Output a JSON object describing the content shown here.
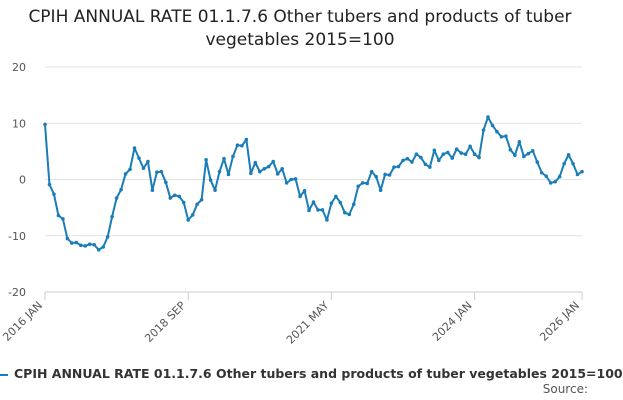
{
  "chart_data": {
    "type": "line",
    "title": "CPIH ANNUAL RATE 01.1.7.6 Other tubers and products of tuber vegetables 2015=100",
    "xlabel": "",
    "ylabel": "",
    "ylim": [
      -20,
      20
    ],
    "yticks": [
      20,
      10,
      0,
      -10,
      -20
    ],
    "x_start": "2016 JAN",
    "x_ticks": [
      {
        "label": "2016 JAN",
        "index": 0
      },
      {
        "label": "2018 SEP",
        "index": 32
      },
      {
        "label": "2021 MAY",
        "index": 64
      },
      {
        "label": "2024 JAN",
        "index": 96
      },
      {
        "label": "2026 JAN",
        "index": 120
      }
    ],
    "series": [
      {
        "name": "CPIH ANNUAL RATE 01.1.7.6 Other tubers and products of tuber vegetables 2015=100",
        "color": "#1b7db8",
        "values": [
          9.8,
          -0.9,
          -2.6,
          -6.4,
          -7.0,
          -10.5,
          -11.3,
          -11.2,
          -11.7,
          -11.8,
          -11.5,
          -11.6,
          -12.5,
          -12.0,
          -10.2,
          -6.6,
          -3.3,
          -1.8,
          1.0,
          1.8,
          5.6,
          3.8,
          2.0,
          3.2,
          -1.9,
          1.3,
          1.4,
          -0.5,
          -3.3,
          -2.8,
          -3.0,
          -4.1,
          -7.2,
          -6.3,
          -4.4,
          -3.6,
          3.5,
          -0.1,
          -1.9,
          1.4,
          3.7,
          0.9,
          4.1,
          6.1,
          6.0,
          7.1,
          1.1,
          3.0,
          1.4,
          1.9,
          2.3,
          3.2,
          1.0,
          1.9,
          -0.6,
          0.0,
          0.1,
          -3.0,
          -2.0,
          -5.5,
          -4.0,
          -5.4,
          -5.4,
          -7.2,
          -4.2,
          -3.0,
          -4.1,
          -5.9,
          -6.2,
          -4.4,
          -1.2,
          -0.6,
          -0.7,
          1.4,
          0.5,
          -1.9,
          0.9,
          0.8,
          2.2,
          2.3,
          3.4,
          3.7,
          3.1,
          4.5,
          3.9,
          2.7,
          2.2,
          5.2,
          3.4,
          4.5,
          4.8,
          3.8,
          5.4,
          4.7,
          4.5,
          5.9,
          4.5,
          3.9,
          8.8,
          11.1,
          9.6,
          8.5,
          7.6,
          7.7,
          5.3,
          4.3,
          6.7,
          4.1,
          4.6,
          5.1,
          3.1,
          1.2,
          0.6,
          -0.6,
          -0.4,
          0.5,
          2.8,
          4.4,
          2.8,
          0.9,
          1.4
        ]
      }
    ]
  },
  "legend": {
    "label": "CPIH ANNUAL RATE 01.1.7.6 Other tubers and products of tuber vegetables 2015=100"
  },
  "source_label": "Source:"
}
